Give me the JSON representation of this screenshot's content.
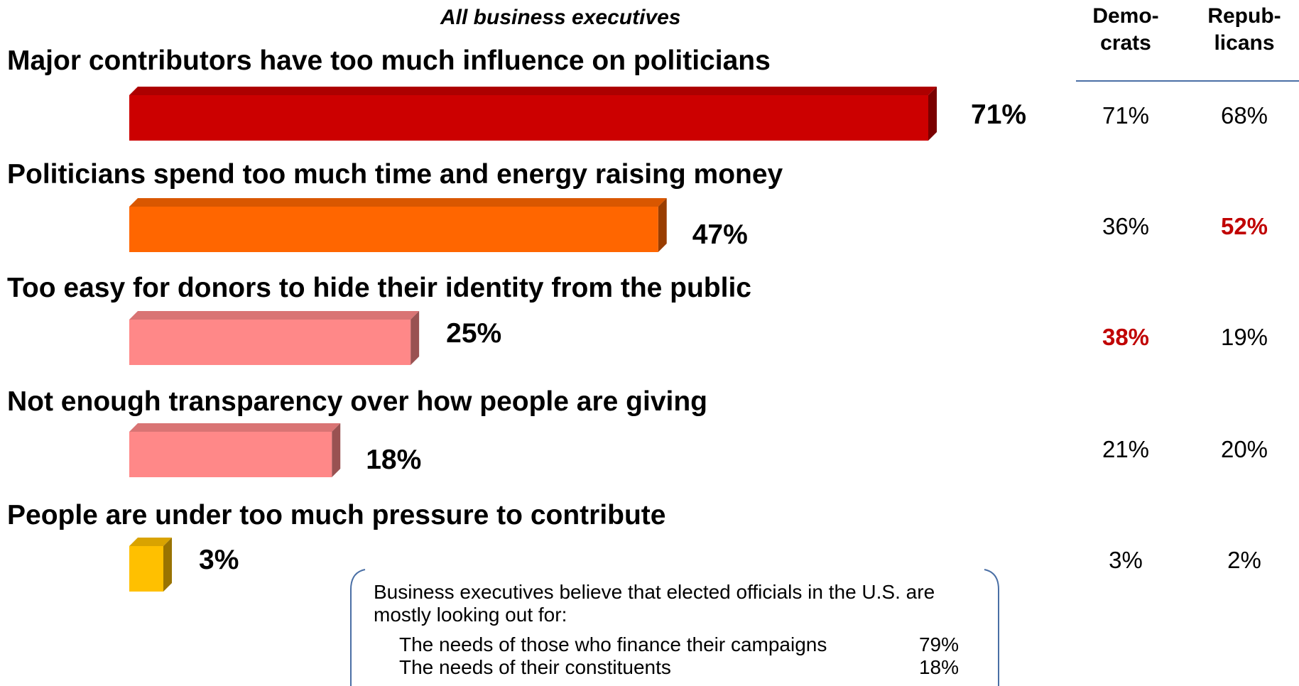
{
  "chart_data": {
    "type": "bar",
    "orientation": "horizontal",
    "title": "All business executives",
    "categories": [
      "Major contributors have too much influence on politicians",
      "Politicians spend too much time and energy raising money",
      "Too easy for donors to hide their identity from the public",
      "Not enough transparency over how people are giving",
      "People are under too much pressure to contribute"
    ],
    "values": [
      71,
      47,
      25,
      18,
      3
    ],
    "value_labels": [
      "71%",
      "47%",
      "25%",
      "18%",
      "3%"
    ],
    "bar_colors": [
      "#cc0000",
      "#ff6600",
      "#ff8888",
      "#ff8888",
      "#ffc000"
    ],
    "xlim": [
      0,
      71
    ],
    "table": {
      "headers": [
        {
          "line1": "Demo-",
          "line2": "crats"
        },
        {
          "line1": "Repub-",
          "line2": "licans"
        }
      ],
      "rows": [
        [
          "71%",
          "68%"
        ],
        [
          "36%",
          "52%"
        ],
        [
          "38%",
          "19%"
        ],
        [
          "21%",
          "20%"
        ],
        [
          "3%",
          "2%"
        ]
      ],
      "highlighted": [
        [
          1,
          1
        ],
        [
          2,
          0
        ]
      ],
      "highlight_color": "#c00000"
    }
  },
  "note": {
    "text": "Business executives believe that elected officials in the U.S. are mostly looking out for:",
    "rows": [
      {
        "label": "The needs of those who finance their campaigns",
        "value": "79%"
      },
      {
        "label": "The needs of their constituents",
        "value": "18%"
      }
    ]
  }
}
